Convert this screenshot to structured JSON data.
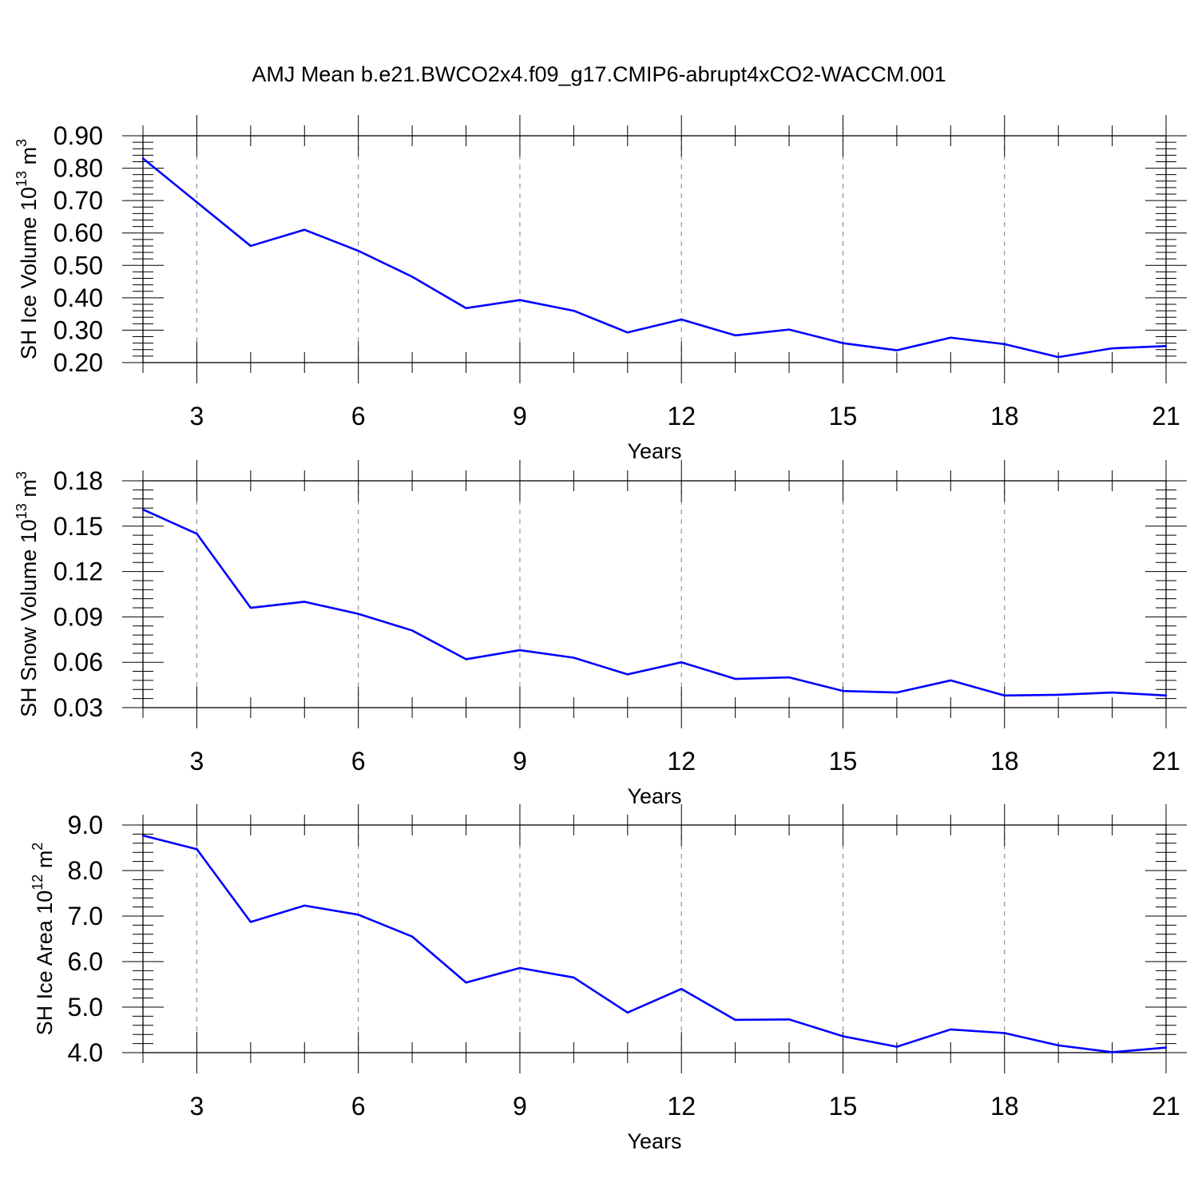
{
  "title": "AMJ Mean b.e21.BWCO2x4.f09_g17.CMIP6-abrupt4xCO2-WACCM.001",
  "colors": {
    "line": "#0000ff",
    "axis": "#000000",
    "grid": "#808080"
  },
  "chart_data": [
    {
      "type": "line",
      "xlabel": "Years",
      "ylabel": "SH Ice Volume",
      "ylabel_unit_base": "10",
      "ylabel_unit_exp": "13",
      "ylabel_unit_symbol": "m",
      "ylabel_unit_symbol_exp": "3",
      "xlim": [
        2,
        21
      ],
      "ylim": [
        0.2,
        0.9
      ],
      "x_ticks": [
        3,
        6,
        9,
        12,
        15,
        18,
        21
      ],
      "x_tick_labels": [
        "3",
        "6",
        "9",
        "12",
        "15",
        "18",
        "21"
      ],
      "y_ticks": [
        0.2,
        0.3,
        0.4,
        0.5,
        0.6,
        0.7,
        0.8,
        0.9
      ],
      "y_tick_labels": [
        "0.20",
        "0.30",
        "0.40",
        "0.50",
        "0.60",
        "0.70",
        "0.80",
        "0.90"
      ],
      "grid": "vertical dashed at major x ticks",
      "x": [
        2,
        3,
        4,
        5,
        6,
        7,
        8,
        9,
        10,
        11,
        12,
        13,
        14,
        15,
        16,
        17,
        18,
        19,
        20,
        21
      ],
      "values": [
        0.83,
        0.695,
        0.56,
        0.61,
        0.545,
        0.465,
        0.368,
        0.393,
        0.36,
        0.293,
        0.333,
        0.284,
        0.302,
        0.26,
        0.238,
        0.277,
        0.257,
        0.217,
        0.244,
        0.251
      ]
    },
    {
      "type": "line",
      "xlabel": "Years",
      "ylabel": "SH Snow Volume",
      "ylabel_unit_base": "10",
      "ylabel_unit_exp": "13",
      "ylabel_unit_symbol": "m",
      "ylabel_unit_symbol_exp": "3",
      "xlim": [
        2,
        21
      ],
      "ylim": [
        0.03,
        0.18
      ],
      "x_ticks": [
        3,
        6,
        9,
        12,
        15,
        18,
        21
      ],
      "x_tick_labels": [
        "3",
        "6",
        "9",
        "12",
        "15",
        "18",
        "21"
      ],
      "y_ticks": [
        0.03,
        0.06,
        0.09,
        0.12,
        0.15,
        0.18
      ],
      "y_tick_labels": [
        "0.03",
        "0.06",
        "0.09",
        "0.12",
        "0.15",
        "0.18"
      ],
      "grid": "vertical dashed at major x ticks",
      "x": [
        2,
        3,
        4,
        5,
        6,
        7,
        8,
        9,
        10,
        11,
        12,
        13,
        14,
        15,
        16,
        17,
        18,
        19,
        20,
        21
      ],
      "values": [
        0.161,
        0.145,
        0.096,
        0.1,
        0.092,
        0.081,
        0.062,
        0.068,
        0.063,
        0.052,
        0.06,
        0.049,
        0.05,
        0.041,
        0.04,
        0.048,
        0.038,
        0.0385,
        0.04,
        0.038
      ]
    },
    {
      "type": "line",
      "xlabel": "Years",
      "ylabel": "SH Ice Area",
      "ylabel_unit_base": "10",
      "ylabel_unit_exp": "12",
      "ylabel_unit_symbol": "m",
      "ylabel_unit_symbol_exp": "2",
      "xlim": [
        2,
        21
      ],
      "ylim": [
        4.0,
        9.0
      ],
      "x_ticks": [
        3,
        6,
        9,
        12,
        15,
        18,
        21
      ],
      "x_tick_labels": [
        "3",
        "6",
        "9",
        "12",
        "15",
        "18",
        "21"
      ],
      "y_ticks": [
        4.0,
        5.0,
        6.0,
        7.0,
        8.0,
        9.0
      ],
      "y_tick_labels": [
        "4.0",
        "5.0",
        "6.0",
        "7.0",
        "8.0",
        "9.0"
      ],
      "grid": "vertical dashed at major x ticks",
      "x": [
        2,
        3,
        4,
        5,
        6,
        7,
        8,
        9,
        10,
        11,
        12,
        13,
        14,
        15,
        16,
        17,
        18,
        19,
        20,
        21
      ],
      "values": [
        8.77,
        8.47,
        6.87,
        7.23,
        7.03,
        6.55,
        5.54,
        5.86,
        5.65,
        4.88,
        5.4,
        4.72,
        4.73,
        4.36,
        4.13,
        4.51,
        4.43,
        4.16,
        4.01,
        4.11
      ]
    }
  ]
}
